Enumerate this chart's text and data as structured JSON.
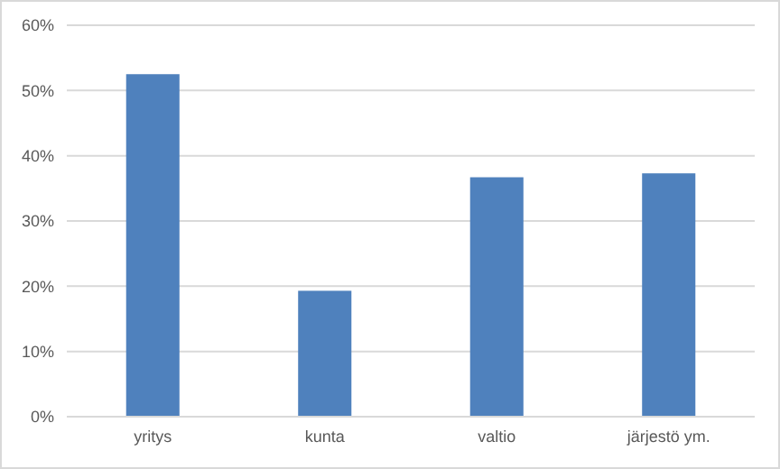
{
  "chart_data": {
    "type": "bar",
    "categories": [
      "yritys",
      "kunta",
      "valtio",
      "järjestö ym."
    ],
    "values": [
      52.5,
      19.3,
      36.7,
      37.3
    ],
    "color": "#4f81bd",
    "ylim": [
      0,
      60
    ],
    "yticks": [
      {
        "value": 0,
        "label": "0%"
      },
      {
        "value": 10,
        "label": "10%"
      },
      {
        "value": 20,
        "label": "20%"
      },
      {
        "value": 30,
        "label": "30%"
      },
      {
        "value": 40,
        "label": "40%"
      },
      {
        "value": 50,
        "label": "50%"
      },
      {
        "value": 60,
        "label": "60%"
      }
    ],
    "grid": "y"
  }
}
